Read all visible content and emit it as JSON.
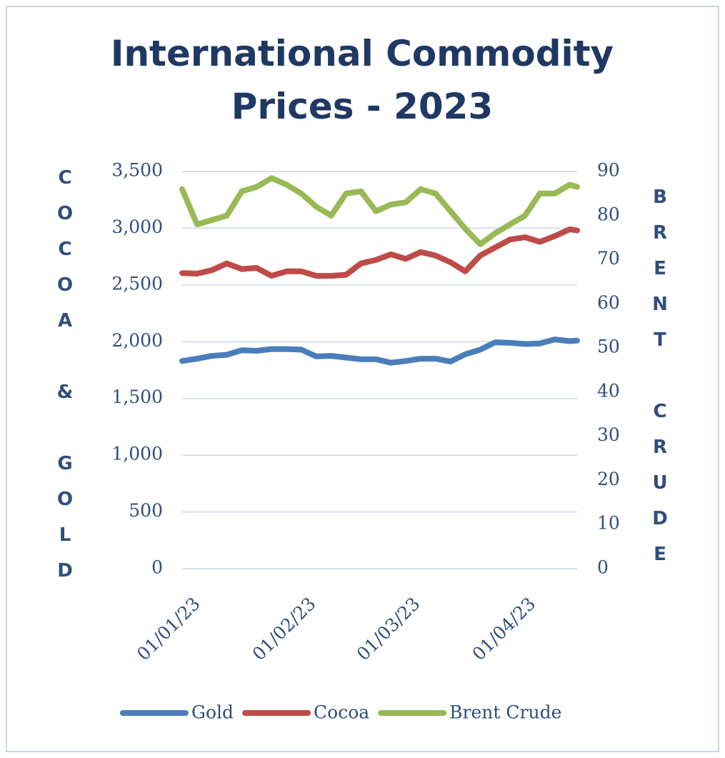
{
  "chart_data": {
    "type": "line",
    "title": "International Commodity Prices - 2023",
    "ylabel": "COCOA & GOLD",
    "y2label": "BRENT CRUDE",
    "x": [
      "01/01/23",
      "05/01/23",
      "09/01/23",
      "13/01/23",
      "17/01/23",
      "21/01/23",
      "25/01/23",
      "29/01/23",
      "02/02/23",
      "06/02/23",
      "10/02/23",
      "14/02/23",
      "18/02/23",
      "22/02/23",
      "26/02/23",
      "02/03/23",
      "06/03/23",
      "10/03/23",
      "14/03/23",
      "18/03/23",
      "22/03/23",
      "26/03/23",
      "30/03/23",
      "03/04/23",
      "07/04/23",
      "11/04/23",
      "15/04/23",
      "17/04/23"
    ],
    "xlim": [
      "01/01/23",
      "17/04/23"
    ],
    "xticks": [
      "01/01/23",
      "01/02/23",
      "01/03/23",
      "01/04/23"
    ],
    "series": [
      {
        "name": "Gold",
        "color": "#4a7ebb",
        "values": [
          1830,
          1850,
          1875,
          1885,
          1925,
          1920,
          1935,
          1935,
          1930,
          1870,
          1875,
          1860,
          1845,
          1845,
          1815,
          1830,
          1850,
          1850,
          1825,
          1890,
          1930,
          1995,
          1990,
          1980,
          1985,
          2020,
          2005,
          2010
        ]
      },
      {
        "name": "Cocoa",
        "color": "#be4b48",
        "values": [
          2605,
          2600,
          2630,
          2690,
          2640,
          2650,
          2580,
          2620,
          2620,
          2580,
          2580,
          2590,
          2690,
          2720,
          2770,
          2730,
          2790,
          2760,
          2700,
          2620,
          2760,
          2830,
          2900,
          2920,
          2880,
          2930,
          2990,
          2980
        ]
      },
      {
        "name": "Brent Crude",
        "color": "#98b954",
        "axis": "y2",
        "values": [
          86,
          78,
          79,
          80,
          85.5,
          86.5,
          88.5,
          87,
          85,
          82,
          80,
          85,
          85.5,
          81,
          82.5,
          83,
          86,
          85,
          81,
          77,
          73.5,
          76,
          78,
          80,
          85,
          85,
          87,
          86.5
        ]
      }
    ],
    "ylim": [
      0,
      3500
    ],
    "yticks": [
      0,
      500,
      {
        "value": 1000,
        "label": "1,000"
      },
      {
        "value": 1500,
        "label": "1,500"
      },
      {
        "value": 2000,
        "label": "2,000"
      },
      {
        "value": 2500,
        "label": "2,500"
      },
      {
        "value": 3000,
        "label": "3,000"
      },
      {
        "value": 3500,
        "label": "3,500"
      }
    ],
    "y2lim": [
      0,
      90
    ],
    "y2ticks": [
      0,
      10,
      20,
      30,
      40,
      50,
      60,
      70,
      80,
      90
    ],
    "grid": true,
    "legend": "bottom"
  }
}
